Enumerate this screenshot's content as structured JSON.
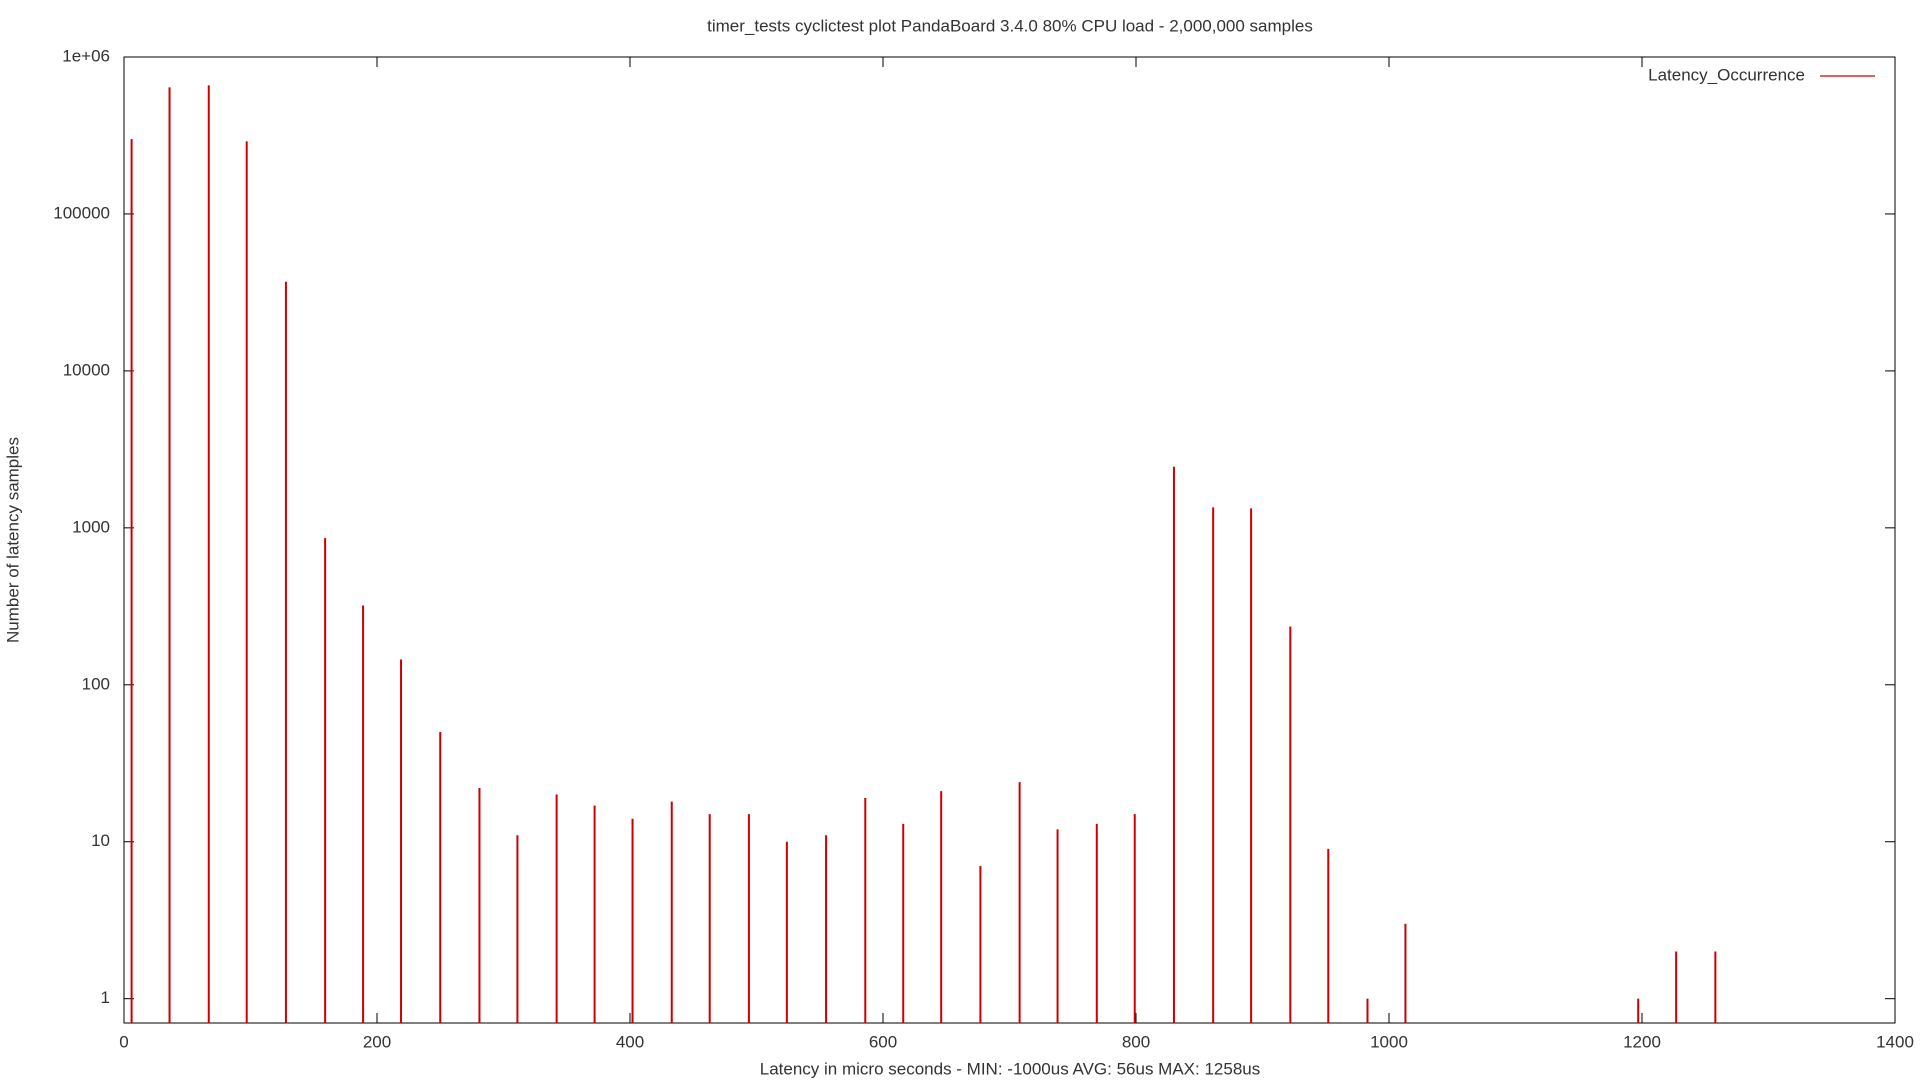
{
  "chart_data": {
    "type": "bar",
    "title": "timer_tests cyclictest plot PandaBoard 3.4.0 80% CPU load  -  2,000,000 samples",
    "xlabel": "Latency in micro seconds - MIN:  -1000us  AVG: 56us MAX: 1258us",
    "ylabel": "Number of latency samples",
    "log_y": true,
    "legend": "top right",
    "xlim": [
      0,
      1400
    ],
    "xticks": [
      0,
      200,
      400,
      600,
      800,
      1000,
      1200,
      1400
    ],
    "ylim": [
      0.7,
      1000000
    ],
    "yticks": [
      1,
      10,
      100,
      1000,
      10000,
      100000,
      {
        "value": 1000000,
        "label": "1e+06"
      }
    ],
    "series": [
      {
        "name": "Latency_Occurrence",
        "color": "#cc0000",
        "x": [
          6,
          36,
          67,
          97,
          128,
          159,
          189,
          219,
          250,
          281,
          311,
          342,
          372,
          402,
          433,
          463,
          494,
          524,
          555,
          586,
          616,
          646,
          677,
          708,
          738,
          769,
          799,
          830,
          861,
          891,
          922,
          952,
          983,
          1013,
          1197,
          1227,
          1258
        ],
        "values": [
          300000,
          640000,
          660000,
          290000,
          37000,
          860,
          320,
          145,
          50,
          22,
          11,
          20,
          17,
          14,
          18,
          15,
          15,
          10,
          11,
          19,
          13,
          21,
          7,
          24,
          12,
          13,
          15,
          2450,
          1350,
          1330,
          235,
          9,
          1,
          3,
          1,
          2,
          2
        ]
      }
    ]
  }
}
